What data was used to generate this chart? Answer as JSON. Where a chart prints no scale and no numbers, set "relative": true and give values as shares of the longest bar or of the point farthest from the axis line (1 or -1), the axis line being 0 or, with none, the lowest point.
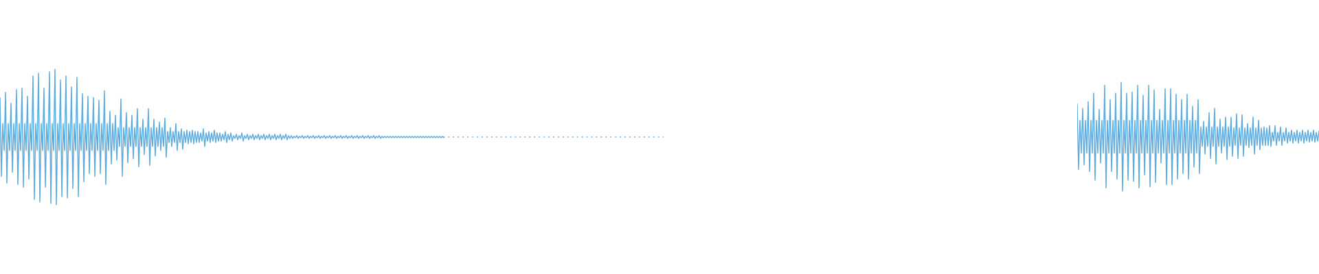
{
  "chart_data": [
    {
      "type": "line",
      "relative": true,
      "marker": "none",
      "line_style": "solid",
      "tick_labels": false,
      "categories": [
        null,
        null,
        null,
        null,
        null,
        null,
        null,
        null,
        null,
        null,
        null,
        null,
        null,
        null,
        null,
        null,
        null,
        null,
        null,
        null,
        null,
        null,
        null,
        null,
        null,
        null,
        null,
        null,
        null,
        null,
        null,
        null,
        null,
        null,
        null,
        null,
        null,
        null,
        null,
        null,
        null,
        null,
        null,
        null,
        null,
        null,
        null,
        null,
        null,
        null,
        null,
        null,
        null,
        null,
        null,
        null,
        null,
        null,
        null,
        null,
        null,
        null,
        null,
        null,
        null,
        null,
        null,
        null,
        null,
        null,
        null,
        null,
        null,
        null,
        null,
        null,
        null,
        null,
        null,
        null,
        null,
        null,
        null,
        null,
        null,
        null,
        null,
        null,
        null,
        null,
        null,
        null,
        null,
        null,
        null,
        null,
        null,
        null,
        null,
        null,
        null,
        null,
        null,
        null,
        null,
        null,
        null,
        null,
        null,
        null,
        null,
        null,
        null,
        null,
        null,
        null,
        null,
        null,
        null,
        null,
        null,
        null,
        null,
        null,
        null,
        null,
        null,
        null,
        null,
        null,
        null,
        null,
        null,
        null,
        null,
        null,
        null,
        null,
        null,
        null,
        null,
        null,
        null,
        null,
        null,
        null,
        null,
        null,
        null,
        null,
        null,
        null,
        null,
        null,
        null,
        null,
        null,
        null,
        null,
        null,
        null,
        null,
        null,
        null,
        null,
        null,
        null,
        null,
        null,
        null,
        null,
        null,
        null,
        null,
        null,
        null,
        null,
        null,
        null,
        null,
        null,
        null,
        null,
        null,
        null,
        null,
        null,
        null,
        null,
        null,
        null,
        null,
        null,
        null,
        null,
        null,
        null,
        null,
        null,
        null,
        null,
        null,
        null,
        null,
        null,
        null,
        null,
        null,
        null,
        null,
        null,
        null,
        null,
        null,
        null,
        null,
        null,
        null,
        null,
        null,
        null,
        null,
        null,
        null,
        null,
        null,
        null,
        null,
        null,
        null,
        null,
        null,
        null,
        null,
        null,
        null,
        null,
        null,
        null,
        null,
        null,
        null,
        null,
        null,
        null,
        null,
        null,
        null,
        null,
        null,
        null,
        null,
        null,
        null,
        null,
        null,
        null,
        null,
        null,
        null,
        null,
        null,
        null,
        null,
        null,
        null,
        null,
        null,
        null,
        null,
        null,
        null,
        null,
        null,
        null,
        null,
        null,
        null,
        null,
        null,
        null,
        null,
        null,
        null,
        null,
        null,
        null,
        null,
        null,
        null,
        null,
        null,
        null,
        null,
        null,
        null,
        null,
        null,
        null,
        null,
        null,
        null,
        null,
        null,
        null,
        null,
        null,
        null,
        null,
        null,
        null,
        null,
        null,
        null,
        null,
        null,
        null,
        null,
        null,
        null,
        null,
        null,
        null,
        null,
        null,
        null,
        null,
        null,
        null,
        null,
        null,
        null,
        null,
        null,
        null,
        null,
        null,
        null,
        null,
        null,
        null,
        null,
        null,
        null,
        null,
        null,
        null,
        null,
        null,
        null,
        null,
        null,
        null,
        null,
        null,
        null,
        null,
        null,
        null,
        null,
        null,
        null,
        null,
        null,
        null,
        null,
        null,
        null,
        null,
        null,
        null,
        null,
        null,
        null,
        null,
        null,
        null,
        null,
        null,
        null,
        null,
        null,
        null,
        null,
        null,
        null,
        null,
        null,
        null,
        null,
        null,
        null,
        null,
        null,
        null,
        null,
        null,
        null,
        null,
        null,
        null,
        null,
        null,
        null,
        null,
        null,
        null,
        null,
        null,
        null,
        null,
        null,
        null,
        null,
        null,
        null,
        null,
        null,
        null,
        null,
        null,
        null,
        null,
        null,
        null,
        null,
        null,
        null,
        null,
        null,
        null,
        null,
        null,
        null,
        null,
        null,
        null,
        null,
        null,
        null,
        null,
        null,
        null,
        null,
        null,
        null,
        null,
        null,
        null,
        null,
        null,
        null,
        null,
        null,
        null,
        null,
        null,
        null,
        null,
        null,
        null,
        null,
        null,
        null,
        null,
        null,
        null,
        null,
        null,
        null,
        null,
        null,
        null,
        null,
        null,
        null,
        null,
        null,
        null,
        null,
        null,
        null,
        null,
        null
      ],
      "series": [
        {
          "color": "#5dade2",
          "values": [
            0.79,
            0.21,
            0.6,
            0.4,
            0.83,
            0.16,
            0.6,
            0.4,
            0.75,
            0.24,
            0.6,
            0.4,
            0.85,
            0.15,
            0.6,
            0.4,
            0.86,
            0.13,
            0.6,
            0.4,
            0.8,
            0.19,
            0.6,
            0.4,
            0.95,
            0.04,
            0.6,
            0.4,
            0.97,
            0.02,
            0.6,
            0.4,
            0.86,
            0.13,
            0.6,
            0.4,
            0.98,
            0.01,
            0.6,
            0.4,
            1,
            0,
            0.6,
            0.4,
            0.92,
            0.06,
            0.6,
            0.4,
            0.95,
            0.05,
            0.6,
            0.4,
            0.87,
            0.12,
            0.6,
            0.4,
            0.94,
            0.06,
            0.6,
            0.4,
            0.82,
            0.17,
            0.6,
            0.4,
            0.8,
            0.23,
            0.6,
            0.4,
            0.79,
            0.21,
            0.6,
            0.4,
            0.77,
            0.23,
            0.6,
            0.4,
            0.84,
            0.15,
            0.6,
            0.4,
            0.69,
            0.3,
            0.6,
            0.4,
            0.66,
            0.33,
            0.57,
            0.43,
            0.78,
            0.21,
            0.57,
            0.43,
            0.68,
            0.31,
            0.57,
            0.43,
            0.66,
            0.34,
            0.57,
            0.43,
            0.71,
            0.28,
            0.57,
            0.43,
            0.63,
            0.37,
            0.57,
            0.43,
            0.71,
            0.29,
            0.57,
            0.43,
            0.63,
            0.36,
            0.57,
            0.43,
            0.61,
            0.4,
            0.57,
            0.43,
            0.64,
            0.35,
            0.54,
            0.46,
            0.57,
            0.43,
            0.54,
            0.46,
            0.6,
            0.4,
            0.54,
            0.46,
            0.56,
            0.41,
            0.54,
            0.46,
            0.55,
            0.45,
            0.54,
            0.46,
            0.55,
            0.45,
            0.54,
            0.46,
            0.54,
            0.46,
            0.53,
            0.47,
            0.56,
            0.43,
            0.53,
            0.47,
            0.54,
            0.46,
            0.53,
            0.47,
            0.55,
            0.46,
            0.53,
            0.47,
            0.53,
            0.47,
            0.52,
            0.48,
            0.54,
            0.46,
            0.52,
            0.48,
            0.53,
            0.47,
            0.51,
            0.49,
            0.52,
            0.48,
            0.51,
            0.49,
            0.53,
            0.47,
            0.51,
            0.49,
            0.52,
            0.48,
            0.51,
            0.49,
            0.52,
            0.48,
            0.51,
            0.49,
            0.52,
            0.48,
            0.51,
            0.49,
            0.52,
            0.48,
            0.51,
            0.49,
            0.52,
            0.48,
            0.51,
            0.49,
            0.52,
            0.48,
            0.51,
            0.49,
            0.52,
            0.48,
            0.51,
            0.49,
            0.52,
            0.48,
            0.51,
            0.49,
            0.51,
            0.49,
            0.505,
            0.495,
            0.51,
            0.49,
            0.505,
            0.495,
            0.51,
            0.49,
            0.505,
            0.495,
            0.51,
            0.49,
            0.505,
            0.495,
            0.51,
            0.49,
            0.505,
            0.495,
            0.51,
            0.49,
            0.505,
            0.495,
            0.51,
            0.49,
            0.505,
            0.495,
            0.51,
            0.49,
            0.505,
            0.495,
            0.51,
            0.49,
            0.505,
            0.495,
            0.51,
            0.49,
            0.505,
            0.495,
            0.51,
            0.49,
            0.505,
            0.495,
            0.51,
            0.49,
            0.505,
            0.495,
            0.51,
            0.49,
            0.505,
            0.495,
            0.51,
            0.49,
            0.505,
            0.495,
            0.51,
            0.49,
            0.505,
            0.495,
            0.51,
            0.49,
            0.505,
            0.495,
            0.51,
            0.49,
            0.505,
            0.495,
            0.505,
            0.495,
            0.505,
            0.495,
            0.505,
            0.495,
            0.505,
            0.495,
            0.505,
            0.495,
            0.505,
            0.495,
            0.505,
            0.495,
            0.505,
            0.495,
            0.505,
            0.495,
            0.505,
            0.495,
            0.505,
            0.495,
            0.505,
            0.495,
            0.505,
            0.495,
            0.505,
            0.495,
            0.505,
            0.495,
            0.505,
            0.495,
            0.505,
            0.495,
            0.505,
            0.495,
            0.505,
            0.495,
            0.505,
            0.495,
            0.505,
            0.495,
            0.505,
            0.495,
            null,
            null,
            null,
            null,
            null,
            null,
            null,
            null,
            null,
            null,
            null,
            null,
            null,
            null,
            null,
            null,
            null,
            null,
            null,
            null,
            null,
            null,
            null,
            null,
            null,
            null,
            null,
            null,
            null,
            null,
            null,
            null,
            null,
            null,
            null,
            null,
            null,
            null,
            null,
            null,
            null,
            null,
            null,
            null,
            null,
            null,
            null,
            null,
            null,
            null,
            null,
            null,
            null,
            null,
            null,
            null,
            null,
            null,
            null,
            null,
            null,
            null,
            null,
            null,
            null,
            null,
            null,
            null,
            null,
            null,
            null,
            null,
            null,
            null,
            null,
            null,
            null,
            null,
            null,
            null,
            null,
            null,
            null,
            null,
            null,
            null,
            null,
            null,
            null,
            null,
            null,
            null,
            null,
            null,
            null,
            null,
            null,
            null,
            null,
            null,
            null,
            null,
            null,
            null,
            null,
            null,
            null,
            null,
            null,
            null,
            null,
            null,
            null,
            null,
            null,
            null,
            null,
            null,
            null,
            null,
            null,
            null,
            null,
            null,
            null,
            null,
            null,
            null,
            null,
            null,
            null,
            null,
            null,
            null,
            null,
            null,
            null,
            null,
            null,
            null,
            null,
            null,
            null,
            null,
            null,
            null,
            null,
            null,
            null,
            null,
            null,
            null,
            null,
            null,
            null,
            null,
            null,
            null,
            null,
            null
          ]
        },
        {
          "color": "#5dade2",
          "line_style": "dotted",
          "values": [
            null,
            null,
            null,
            null,
            null,
            null,
            null,
            null,
            null,
            null,
            null,
            null,
            null,
            null,
            null,
            null,
            null,
            null,
            null,
            null,
            null,
            null,
            null,
            null,
            null,
            null,
            null,
            null,
            null,
            null,
            null,
            null,
            null,
            null,
            null,
            null,
            null,
            null,
            null,
            null,
            null,
            null,
            null,
            null,
            null,
            null,
            null,
            null,
            null,
            null,
            null,
            null,
            null,
            null,
            null,
            null,
            null,
            null,
            null,
            null,
            null,
            null,
            null,
            null,
            null,
            null,
            null,
            null,
            null,
            null,
            null,
            null,
            null,
            null,
            null,
            null,
            null,
            null,
            null,
            null,
            null,
            null,
            null,
            null,
            null,
            null,
            null,
            null,
            null,
            null,
            null,
            null,
            null,
            null,
            null,
            null,
            null,
            null,
            null,
            null,
            null,
            null,
            null,
            null,
            null,
            null,
            null,
            null,
            null,
            null,
            null,
            null,
            null,
            null,
            null,
            null,
            null,
            null,
            null,
            null,
            null,
            null,
            null,
            null,
            null,
            null,
            null,
            null,
            null,
            null,
            null,
            null,
            null,
            null,
            null,
            null,
            null,
            null,
            null,
            null,
            null,
            null,
            null,
            null,
            null,
            null,
            null,
            null,
            null,
            null,
            null,
            null,
            null,
            null,
            null,
            null,
            null,
            null,
            null,
            null,
            null,
            null,
            null,
            null,
            null,
            null,
            null,
            null,
            null,
            null,
            null,
            null,
            null,
            null,
            null,
            null,
            null,
            null,
            null,
            null,
            null,
            null,
            null,
            null,
            null,
            null,
            null,
            null,
            null,
            null,
            null,
            null,
            null,
            null,
            null,
            null,
            null,
            null,
            null,
            null,
            null,
            null,
            null,
            null,
            null,
            null,
            null,
            null,
            null,
            null,
            null,
            null,
            null,
            null,
            null,
            null,
            null,
            null,
            null,
            null,
            null,
            null,
            null,
            null,
            null,
            null,
            null,
            null,
            null,
            null,
            null,
            null,
            null,
            null,
            null,
            null,
            null,
            null,
            null,
            null,
            null,
            null,
            null,
            null,
            null,
            null,
            null,
            null,
            null,
            null,
            null,
            null,
            null,
            null,
            null,
            null,
            null,
            null,
            null,
            null,
            null,
            null,
            null,
            null,
            null,
            null,
            null,
            null,
            null,
            null,
            null,
            null,
            null,
            null,
            null,
            null,
            null,
            null,
            null,
            null,
            null,
            null,
            null,
            null,
            null,
            null,
            null,
            null,
            null,
            null,
            null,
            null,
            null,
            null,
            null,
            null,
            null,
            null,
            null,
            null,
            null,
            null,
            null,
            null,
            null,
            null,
            null,
            null,
            null,
            null,
            null,
            null,
            null,
            null,
            null,
            null,
            null,
            null,
            null,
            null,
            null,
            null,
            null,
            0.5,
            0.5,
            0.5,
            0.5,
            0.5,
            0.5,
            0.5,
            0.5,
            0.5,
            0.5,
            0.5,
            0.5,
            0.5,
            0.5,
            0.5,
            0.5,
            0.5,
            0.5,
            0.5,
            0.5,
            0.5,
            0.5,
            0.5,
            0.5,
            0.5,
            0.5,
            0.5,
            0.5,
            0.5,
            0.5,
            0.5,
            0.5,
            0.5,
            0.5,
            0.5,
            0.5,
            0.5,
            0.5,
            0.5,
            0.5,
            0.5,
            0.5,
            0.5,
            0.5,
            0.5,
            0.5,
            0.5,
            0.5,
            0.5,
            0.5,
            0.5,
            0.5,
            0.5,
            0.5,
            0.5,
            0.5,
            0.5,
            0.5,
            0.5,
            0.5,
            0.5,
            0.5,
            0.5,
            0.5,
            0.5,
            0.5,
            0.5,
            0.5,
            0.5,
            0.5,
            0.5,
            0.5,
            0.5,
            0.5,
            0.5,
            0.5,
            0.5,
            0.5,
            0.5,
            0.5,
            0.5,
            0.5,
            0.5,
            0.5,
            0.5,
            0.5,
            0.5,
            0.5,
            0.5,
            0.5,
            0.5,
            0.5,
            0.5,
            0.5,
            0.5,
            0.5,
            0.5,
            0.5,
            0.5,
            0.5,
            0.5,
            0.5,
            0.5,
            0.5,
            0.5,
            0.5,
            0.5,
            0.5,
            0.5,
            0.5,
            0.5,
            0.5,
            0.5,
            0.5,
            0.5,
            0.5,
            0.5,
            0.5,
            0.5,
            0.5,
            0.5,
            0.5,
            0.5,
            0.5,
            0.5,
            0.5,
            0.5,
            0.5,
            0.5,
            0.5,
            0.5,
            0.5,
            0.5,
            0.5,
            0.5,
            0.5,
            0.5,
            0.5,
            0.5,
            0.5,
            0.5,
            0.5,
            0.5,
            0.5,
            0.5,
            0.5,
            0.5,
            0.5,
            0.5,
            0.5,
            0.5,
            0.5,
            0.5,
            0.5,
            0.5,
            0.5,
            0.5,
            0.5,
            0.5,
            0.5,
            0.5
          ]
        }
      ]
    },
    {
      "type": "line",
      "relative": true,
      "marker": "none",
      "line_style": "solid",
      "tick_labels": false,
      "color": "#5dade2",
      "categories": [
        null,
        null,
        null,
        null,
        null,
        null,
        null,
        null,
        null,
        null,
        null,
        null,
        null,
        null,
        null,
        null,
        null,
        null,
        null,
        null,
        null,
        null,
        null,
        null,
        null,
        null,
        null,
        null,
        null,
        null,
        null,
        null,
        null,
        null,
        null,
        null,
        null,
        null,
        null,
        null,
        null,
        null,
        null,
        null,
        null,
        null,
        null,
        null,
        null,
        null,
        null,
        null,
        null,
        null,
        null,
        null,
        null,
        null,
        null,
        null,
        null,
        null,
        null,
        null,
        null,
        null,
        null,
        null,
        null,
        null,
        null,
        null,
        null,
        null,
        null,
        null,
        null,
        null,
        null,
        null,
        null,
        null,
        null,
        null,
        null,
        null,
        null,
        null,
        null,
        null,
        null,
        null,
        null,
        null,
        null,
        null,
        null,
        null,
        null,
        null,
        null,
        null,
        null,
        null,
        null,
        null,
        null,
        null,
        null,
        null,
        null,
        null,
        null,
        null,
        null,
        null,
        null,
        null,
        null,
        null,
        null,
        null,
        null,
        null,
        null,
        null,
        null,
        null,
        null,
        null,
        null,
        null,
        null,
        null,
        null,
        null,
        null,
        null,
        null,
        null,
        null,
        null,
        null,
        null,
        null,
        null,
        null,
        null,
        null,
        null,
        null,
        null,
        null,
        null,
        null,
        null,
        null,
        null,
        null,
        null,
        null,
        null,
        null,
        null,
        null,
        null,
        null,
        null,
        null,
        null,
        null,
        null,
        null,
        null,
        null,
        null,
        null
      ],
      "values": [
        0.8,
        0.2,
        0.65,
        0.35,
        0.76,
        0.24,
        0.65,
        0.35,
        0.82,
        0.18,
        0.65,
        0.35,
        0.9,
        0.1,
        0.65,
        0.35,
        0.75,
        0.26,
        0.65,
        0.35,
        0.97,
        0.03,
        0.65,
        0.35,
        0.84,
        0.18,
        0.65,
        0.35,
        0.9,
        0.11,
        0.65,
        0.35,
        1,
        0,
        0.65,
        0.35,
        0.9,
        0.1,
        0.65,
        0.35,
        0.91,
        0.09,
        0.65,
        0.35,
        0.97,
        0.03,
        0.65,
        0.35,
        0.88,
        0.15,
        0.65,
        0.35,
        0.97,
        0.04,
        0.65,
        0.35,
        0.93,
        0.08,
        0.65,
        0.35,
        0.75,
        0.26,
        0.65,
        0.35,
        0.94,
        0.06,
        0.65,
        0.35,
        0.94,
        0.06,
        0.65,
        0.35,
        0.89,
        0.11,
        0.65,
        0.35,
        0.84,
        0.16,
        0.65,
        0.35,
        0.89,
        0.11,
        0.65,
        0.35,
        0.78,
        0.22,
        0.65,
        0.35,
        0.84,
        0.16,
        0.59,
        0.41,
        0.64,
        0.34,
        0.59,
        0.41,
        0.72,
        0.3,
        0.59,
        0.41,
        0.76,
        0.25,
        0.59,
        0.41,
        0.66,
        0.35,
        0.59,
        0.41,
        0.68,
        0.29,
        0.59,
        0.41,
        0.68,
        0.32,
        0.58,
        0.42,
        0.71,
        0.3,
        0.58,
        0.42,
        0.7,
        0.32,
        0.58,
        0.42,
        0.62,
        0.4,
        0.58,
        0.42,
        0.68,
        0.34,
        0.58,
        0.42,
        0.65,
        0.38,
        0.58,
        0.42,
        0.59,
        0.42,
        0.58,
        0.42,
        0.6,
        0.41,
        0.54,
        0.46,
        0.6,
        0.42,
        0.54,
        0.46,
        0.59,
        0.42,
        0.54,
        0.46,
        0.58,
        0.44,
        0.54,
        0.46,
        0.56,
        0.44,
        0.54,
        0.46,
        0.56,
        0.44,
        0.54,
        0.46,
        0.56,
        0.44,
        0.54,
        0.46,
        0.56,
        0.45,
        0.54,
        0.46,
        0.56,
        0.45,
        0.54,
        0.46,
        0.55
      ]
    }
  ]
}
